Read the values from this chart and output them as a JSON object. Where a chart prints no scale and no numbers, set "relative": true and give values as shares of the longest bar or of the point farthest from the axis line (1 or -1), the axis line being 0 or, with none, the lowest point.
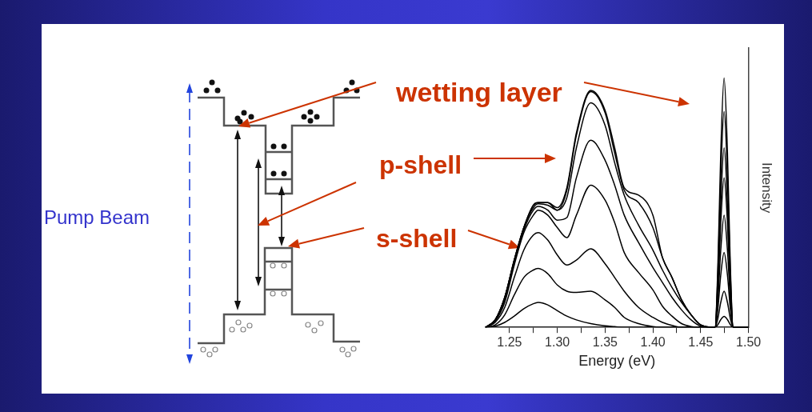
{
  "chart_data": {
    "type": "line",
    "relative": true,
    "xlabel": "Energy (eV)",
    "ylabel": "Intensity",
    "annotations": [
      "wetting layer",
      "p-shell",
      "s-shell",
      "Pump Beam"
    ],
    "xlim": [
      1.225,
      1.5
    ],
    "xticks": [
      {
        "value": 1.25,
        "label": "1.25"
      },
      {
        "value": 1.275,
        "label": null
      },
      {
        "value": 1.3,
        "label": "1.30"
      },
      {
        "value": 1.325,
        "label": null
      },
      {
        "value": 1.35,
        "label": "1.35"
      },
      {
        "value": 1.375,
        "label": null
      },
      {
        "value": 1.4,
        "label": "1.40"
      },
      {
        "value": 1.425,
        "label": null
      },
      {
        "value": 1.45,
        "label": "1.45"
      },
      {
        "value": 1.475,
        "label": null
      },
      {
        "value": 1.5,
        "label": "1.50"
      }
    ],
    "x": [
      1.225,
      1.235,
      1.245,
      1.255,
      1.265,
      1.275,
      1.28,
      1.29,
      1.3,
      1.31,
      1.32,
      1.335,
      1.35,
      1.36,
      1.37,
      1.385,
      1.4,
      1.41,
      1.42,
      1.43,
      1.44,
      1.45,
      1.465,
      1.468,
      1.471,
      1.4745,
      1.478,
      1.481,
      1.484,
      1.5
    ],
    "series": [
      {
        "color": "#000000",
        "values": [
          0,
          0.005,
          0.02,
          0.045,
          0.075,
          0.095,
          0.1,
          0.09,
          0.067,
          0.045,
          0.03,
          0.015,
          0.006,
          0.003,
          0,
          0,
          0,
          0,
          0,
          0,
          0,
          0,
          0,
          0.011,
          0.031,
          0.044,
          0.031,
          0.011,
          0,
          0
        ]
      },
      {
        "color": "#000000",
        "values": [
          0,
          0.01,
          0.05,
          0.13,
          0.2,
          0.23,
          0.236,
          0.215,
          0.17,
          0.145,
          0.14,
          0.145,
          0.11,
          0.08,
          0.04,
          0.015,
          0.003,
          0,
          0,
          0,
          0,
          0,
          0,
          0.036,
          0.1,
          0.145,
          0.1,
          0.036,
          0,
          0
        ]
      },
      {
        "color": "#000000",
        "values": [
          0,
          0.02,
          0.08,
          0.2,
          0.31,
          0.37,
          0.38,
          0.35,
          0.29,
          0.25,
          0.27,
          0.315,
          0.255,
          0.2,
          0.145,
          0.08,
          0.04,
          0.02,
          0.008,
          0,
          0,
          0,
          0,
          0.075,
          0.21,
          0.3,
          0.21,
          0.075,
          0,
          0
        ]
      },
      {
        "color": "#000000",
        "values": [
          0,
          0.025,
          0.1,
          0.25,
          0.38,
          0.45,
          0.47,
          0.45,
          0.4,
          0.36,
          0.45,
          0.57,
          0.51,
          0.42,
          0.3,
          0.22,
          0.15,
          0.085,
          0.045,
          0.015,
          0.003,
          0,
          0,
          0.11,
          0.31,
          0.45,
          0.31,
          0.11,
          0,
          0
        ]
      },
      {
        "color": "#000000",
        "values": [
          0,
          0.03,
          0.11,
          0.26,
          0.39,
          0.47,
          0.485,
          0.47,
          0.43,
          0.44,
          0.6,
          0.75,
          0.67,
          0.57,
          0.45,
          0.34,
          0.24,
          0.18,
          0.12,
          0.07,
          0.03,
          0.005,
          0,
          0.15,
          0.42,
          0.6,
          0.42,
          0.15,
          0,
          0
        ]
      },
      {
        "color": "#000000",
        "values": [
          0,
          0.03,
          0.12,
          0.27,
          0.4,
          0.48,
          0.495,
          0.49,
          0.47,
          0.52,
          0.72,
          0.9,
          0.81,
          0.66,
          0.53,
          0.41,
          0.31,
          0.23,
          0.16,
          0.1,
          0.05,
          0.01,
          0,
          0.18,
          0.5,
          0.72,
          0.5,
          0.18,
          0,
          0
        ]
      },
      {
        "color": "#000000",
        "values": [
          0,
          0.03,
          0.12,
          0.27,
          0.4,
          0.49,
          0.5,
          0.5,
          0.47,
          0.55,
          0.77,
          0.945,
          0.86,
          0.7,
          0.55,
          0.5,
          0.4,
          0.28,
          0.2,
          0.11,
          0.05,
          0.01,
          0,
          0.22,
          0.605,
          0.865,
          0.605,
          0.22,
          0,
          0
        ]
      },
      {
        "color": "#000000",
        "values": [
          0,
          0.03,
          0.12,
          0.27,
          0.4,
          0.49,
          0.5,
          0.5,
          0.48,
          0.56,
          0.78,
          0.95,
          0.87,
          0.72,
          0.56,
          0.53,
          0.45,
          0.28,
          0.2,
          0.11,
          0.05,
          0.01,
          0,
          0.25,
          0.7,
          1,
          0.7,
          0.25,
          0,
          0
        ]
      }
    ]
  }
}
